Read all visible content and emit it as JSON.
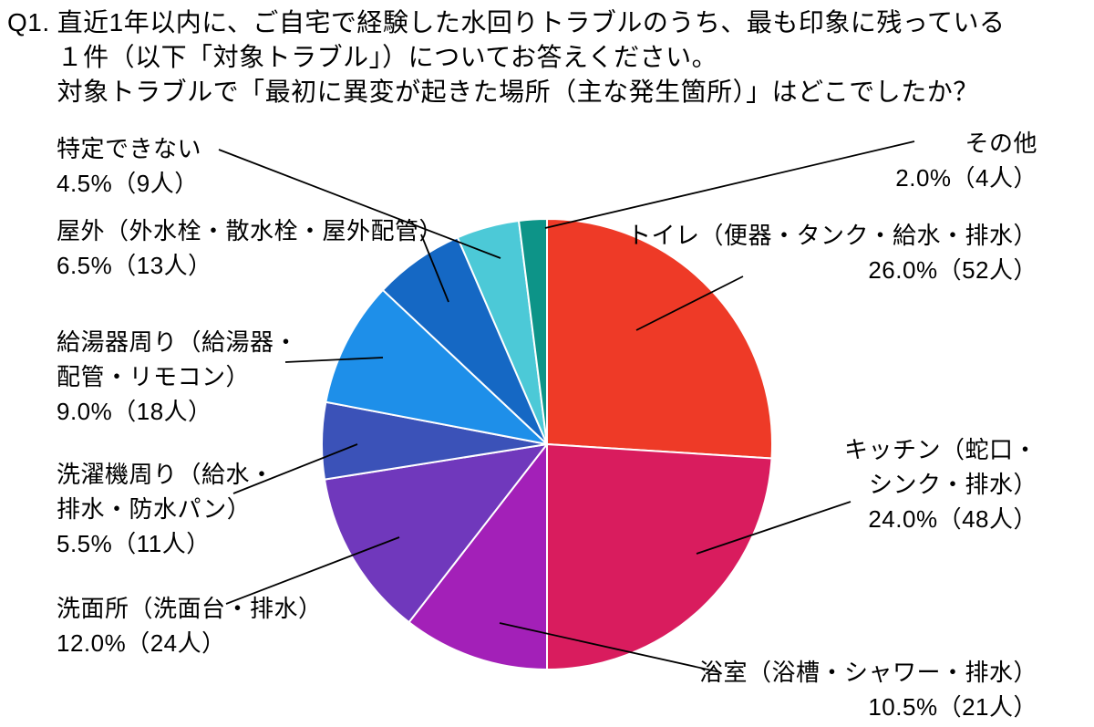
{
  "title": {
    "prefix": "Q1.",
    "lines": [
      "直近1年以内に、ご自宅で経験した水回りトラブルのうち、最も印象に残っている",
      "１件（以下「対象トラブル」）についてお答えください。",
      "対象トラブルで「最初に異変が起きた場所（主な発生箇所）」はどこでしたか？"
    ]
  },
  "chart_data": {
    "type": "pie",
    "direction": "clockwise",
    "start_angle": "12-oclock",
    "legend_position": "around-pie-with-leader-lines",
    "segments": [
      {
        "id": "toilet",
        "label": "トイレ（便器・タンク・給水・排水）",
        "label_lines": [
          "トイレ（便器・タンク・給水・排水）"
        ],
        "percent": 26.0,
        "count": 52,
        "value_label": "26.0%（52人）",
        "color": "#ee3a27"
      },
      {
        "id": "kitchen",
        "label": "キッチン（蛇口・シンク・排水）",
        "label_lines": [
          "キッチン（蛇口・",
          "シンク・排水）"
        ],
        "percent": 24.0,
        "count": 48,
        "value_label": "24.0%（48人）",
        "color": "#d91c5e"
      },
      {
        "id": "bathroom",
        "label": "浴室（浴槽・シャワー・排水）",
        "label_lines": [
          "浴室（浴槽・シャワー・排水）"
        ],
        "percent": 10.5,
        "count": 21,
        "value_label": "10.5%（21人）",
        "color": "#a320b8"
      },
      {
        "id": "washstand",
        "label": "洗面所（洗面台・排水）",
        "label_lines": [
          "洗面所（洗面台・排水）"
        ],
        "percent": 12.0,
        "count": 24,
        "value_label": "12.0%（24人）",
        "color": "#7038bc"
      },
      {
        "id": "washing-machine",
        "label": "洗濯機周り（給水・排水・防水パン）",
        "label_lines": [
          "洗濯機周り（給水・",
          "排水・防水パン）"
        ],
        "percent": 5.5,
        "count": 11,
        "value_label": "5.5%（11人）",
        "color": "#3b52b8"
      },
      {
        "id": "water-heater",
        "label": "給湯器周り（給湯器・配管・リモコン）",
        "label_lines": [
          "給湯器周り（給湯器・",
          "配管・リモコン）"
        ],
        "percent": 9.0,
        "count": 18,
        "value_label": "9.0%（18人）",
        "color": "#1e8fe9"
      },
      {
        "id": "outdoor",
        "label": "屋外（外水栓・散水栓・屋外配管）",
        "label_lines": [
          "屋外（外水栓・散水栓・屋外配管）"
        ],
        "percent": 6.5,
        "count": 13,
        "value_label": "6.5%（13人）",
        "color": "#1568c4"
      },
      {
        "id": "unidentified",
        "label": "特定できない",
        "label_lines": [
          "特定できない"
        ],
        "percent": 4.5,
        "count": 9,
        "value_label": "4.5%（9人）",
        "color": "#4cc9d7"
      },
      {
        "id": "other",
        "label": "その他",
        "label_lines": [
          "その他"
        ],
        "percent": 2.0,
        "count": 4,
        "value_label": "2.0%（4人）",
        "color": "#0d9488"
      }
    ]
  },
  "colors": {
    "background": "#ffffff",
    "text": "#000000",
    "leader_line": "#000000",
    "slice_border": "#ffffff"
  }
}
